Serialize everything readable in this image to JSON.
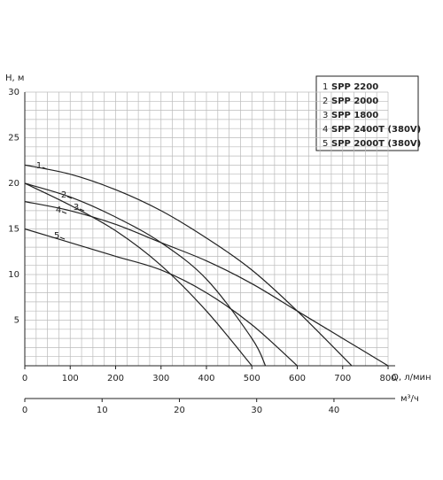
{
  "chart_data": {
    "type": "line",
    "ylabel": "H, м",
    "xlabel": "Q, л/мин",
    "x2label": "м³/ч",
    "xlim": [
      0,
      800
    ],
    "xticks": [
      0,
      100,
      200,
      300,
      400,
      500,
      600,
      700,
      800
    ],
    "ylim": [
      0,
      30
    ],
    "yticks": [
      5,
      10,
      15,
      20,
      25,
      30
    ],
    "x2lim": [
      0,
      47
    ],
    "x2ticks": [
      0,
      10,
      20,
      30,
      40
    ],
    "grid": true,
    "minor_grid": {
      "x": 25,
      "y": 1
    },
    "legend": "top-right",
    "series": [
      {
        "number": "1",
        "name": "SPP 2200",
        "color": "#222",
        "x": [
          0,
          100,
          200,
          300,
          400,
          500,
          600,
          720
        ],
        "values": [
          22,
          21,
          19.3,
          17,
          14,
          10.5,
          6,
          0
        ]
      },
      {
        "number": "2",
        "name": "SPP 2000",
        "color": "#222",
        "x": [
          0,
          100,
          200,
          300,
          400,
          500,
          530
        ],
        "values": [
          20,
          18.5,
          16.3,
          13.5,
          9.5,
          3,
          0
        ]
      },
      {
        "number": "3",
        "name": "SPP 1800",
        "color": "#222",
        "x": [
          0,
          100,
          200,
          300,
          400,
          500
        ],
        "values": [
          20,
          17.6,
          14.8,
          11,
          6,
          0
        ]
      },
      {
        "number": "4",
        "name": "SPP 2400T (380V)",
        "color": "#222",
        "x": [
          0,
          100,
          200,
          300,
          400,
          500,
          600,
          700,
          800
        ],
        "values": [
          18,
          17,
          15.5,
          13.5,
          11.5,
          9,
          6,
          3,
          0
        ]
      },
      {
        "number": "5",
        "name": "SPP 2000T (380V)",
        "color": "#222",
        "x": [
          0,
          100,
          200,
          300,
          400,
          500,
          600
        ],
        "values": [
          15,
          13.5,
          12,
          10.5,
          8,
          4.5,
          0
        ]
      }
    ]
  }
}
